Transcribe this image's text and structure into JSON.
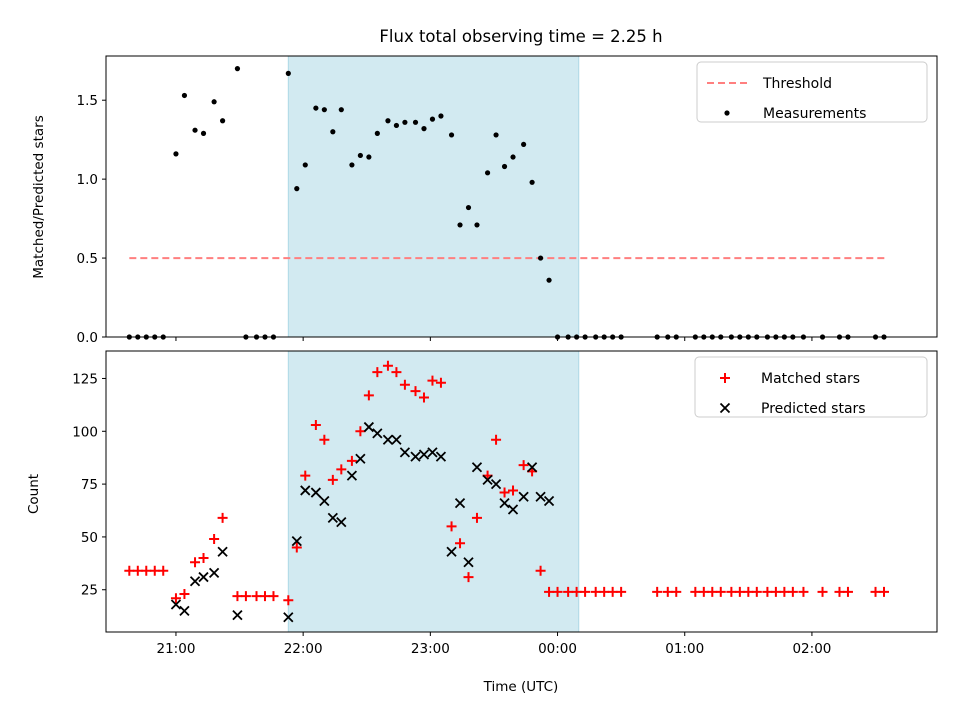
{
  "figure": {
    "title": "Flux total observing time = 2.25 h",
    "xlabel": "Time (UTC)"
  },
  "colors": {
    "span": "#add8e6",
    "threshold": "#ff7f7f",
    "measurements": "#000000",
    "matched": "#ff0000",
    "predicted": "#000000"
  },
  "chart_data": [
    {
      "type": "scatter",
      "name": "ratio-panel",
      "ylabel": "Matched/Predicted stars",
      "xlim": [
        "20:27",
        "02:59"
      ],
      "ylim": [
        0,
        1.78
      ],
      "yticks": [
        0.0,
        0.5,
        1.0,
        1.5
      ],
      "ytick_labels": [
        "0.0",
        "0.5",
        "1.0",
        "1.5"
      ],
      "xticks": [
        "21:00",
        "22:00",
        "23:00",
        "00:00",
        "01:00",
        "02:00"
      ],
      "span": [
        "21:53",
        "00:10"
      ],
      "legend": {
        "placement": "upper right",
        "entries": [
          "Threshold",
          "Measurements"
        ]
      },
      "threshold": {
        "label": "Threshold",
        "value": 0.5,
        "x_range": [
          "20:38",
          "02:35"
        ]
      },
      "series": [
        {
          "name": "Measurements",
          "marker": "dot",
          "x": [
            "20:38",
            "20:42",
            "20:46",
            "20:50",
            "20:54",
            "21:00",
            "21:04",
            "21:09",
            "21:13",
            "21:18",
            "21:22",
            "21:29",
            "21:33",
            "21:38",
            "21:42",
            "21:46",
            "21:53",
            "21:57",
            "22:01",
            "22:06",
            "22:10",
            "22:14",
            "22:18",
            "22:23",
            "22:27",
            "22:31",
            "22:35",
            "22:40",
            "22:44",
            "22:48",
            "22:53",
            "22:57",
            "23:01",
            "23:05",
            "23:10",
            "23:14",
            "23:18",
            "23:22",
            "23:27",
            "23:31",
            "23:35",
            "23:39",
            "23:44",
            "23:48",
            "23:52",
            "23:56",
            "00:00",
            "00:05",
            "00:09",
            "00:13",
            "00:18",
            "00:22",
            "00:26",
            "00:30",
            "00:47",
            "00:52",
            "00:56",
            "01:05",
            "01:09",
            "01:13",
            "01:17",
            "01:22",
            "01:26",
            "01:30",
            "01:34",
            "01:39",
            "01:43",
            "01:47",
            "01:51",
            "01:56",
            "02:05",
            "02:13",
            "02:17",
            "02:30",
            "02:34"
          ],
          "y": [
            0,
            0,
            0,
            0,
            0,
            1.16,
            1.53,
            1.31,
            1.29,
            1.49,
            1.37,
            1.7,
            0,
            0,
            0,
            0,
            1.67,
            0.94,
            1.09,
            1.45,
            1.44,
            1.3,
            1.44,
            1.09,
            1.15,
            1.14,
            1.29,
            1.37,
            1.34,
            1.36,
            1.36,
            1.32,
            1.38,
            1.4,
            1.28,
            0.71,
            0.82,
            0.71,
            1.04,
            1.28,
            1.08,
            1.14,
            1.22,
            0.98,
            0.5,
            0.36,
            0,
            0,
            0,
            0,
            0,
            0,
            0,
            0,
            0,
            0,
            0,
            0,
            0,
            0,
            0,
            0,
            0,
            0,
            0,
            0,
            0,
            0,
            0,
            0,
            0,
            0,
            0,
            0,
            0
          ]
        }
      ]
    },
    {
      "type": "scatter",
      "name": "count-panel",
      "ylabel": "Count",
      "xlim": [
        "20:27",
        "02:59"
      ],
      "ylim": [
        5,
        138
      ],
      "yticks": [
        25,
        50,
        75,
        100,
        125
      ],
      "ytick_labels": [
        "25",
        "50",
        "75",
        "100",
        "125"
      ],
      "xticks": [
        "21:00",
        "22:00",
        "23:00",
        "00:00",
        "01:00",
        "02:00"
      ],
      "xtick_labels": [
        "21:00",
        "22:00",
        "23:00",
        "00:00",
        "01:00",
        "02:00"
      ],
      "span": [
        "21:53",
        "00:10"
      ],
      "legend": {
        "placement": "upper right",
        "entries": [
          "Matched stars",
          "Predicted stars"
        ]
      },
      "series": [
        {
          "name": "Matched stars",
          "marker": "plus",
          "x": [
            "20:38",
            "20:42",
            "20:46",
            "20:50",
            "20:54",
            "21:00",
            "21:04",
            "21:09",
            "21:13",
            "21:18",
            "21:22",
            "21:29",
            "21:33",
            "21:38",
            "21:42",
            "21:46",
            "21:53",
            "21:57",
            "22:01",
            "22:06",
            "22:10",
            "22:14",
            "22:18",
            "22:23",
            "22:27",
            "22:31",
            "22:35",
            "22:40",
            "22:44",
            "22:48",
            "22:53",
            "22:57",
            "23:01",
            "23:05",
            "23:10",
            "23:14",
            "23:18",
            "23:22",
            "23:27",
            "23:31",
            "23:35",
            "23:39",
            "23:44",
            "23:48",
            "23:52",
            "23:56",
            "00:00",
            "00:05",
            "00:09",
            "00:13",
            "00:18",
            "00:22",
            "00:26",
            "00:30",
            "00:47",
            "00:52",
            "00:56",
            "01:05",
            "01:09",
            "01:13",
            "01:17",
            "01:22",
            "01:26",
            "01:30",
            "01:34",
            "01:39",
            "01:43",
            "01:47",
            "01:51",
            "01:56",
            "02:05",
            "02:13",
            "02:17",
            "02:30",
            "02:34"
          ],
          "y": [
            34,
            34,
            34,
            34,
            34,
            21,
            23,
            38,
            40,
            49,
            59,
            22,
            22,
            22,
            22,
            22,
            20,
            45,
            79,
            103,
            96,
            77,
            82,
            86,
            100,
            117,
            128,
            131,
            128,
            122,
            119,
            116,
            124,
            123,
            55,
            47,
            31,
            59,
            79,
            96,
            71,
            72,
            84,
            81,
            34,
            24,
            24,
            24,
            24,
            24,
            24,
            24,
            24,
            24,
            24,
            24,
            24,
            24,
            24,
            24,
            24,
            24,
            24,
            24,
            24,
            24,
            24,
            24,
            24,
            24,
            24,
            24,
            24,
            24,
            24
          ]
        },
        {
          "name": "Predicted stars",
          "marker": "x",
          "x": [
            "21:00",
            "21:04",
            "21:09",
            "21:13",
            "21:18",
            "21:22",
            "21:29",
            "21:53",
            "21:57",
            "22:01",
            "22:06",
            "22:10",
            "22:14",
            "22:18",
            "22:23",
            "22:27",
            "22:31",
            "22:35",
            "22:40",
            "22:44",
            "22:48",
            "22:53",
            "22:57",
            "23:01",
            "23:05",
            "23:10",
            "23:14",
            "23:18",
            "23:22",
            "23:27",
            "23:31",
            "23:35",
            "23:39",
            "23:44",
            "23:48",
            "23:52",
            "23:56"
          ],
          "y": [
            18,
            15,
            29,
            31,
            33,
            43,
            13,
            12,
            48,
            72,
            71,
            67,
            59,
            57,
            79,
            87,
            102,
            99,
            96,
            96,
            90,
            88,
            89,
            90,
            88,
            43,
            66,
            38,
            83,
            77,
            75,
            66,
            63,
            69,
            83,
            69,
            67
          ]
        }
      ]
    }
  ]
}
